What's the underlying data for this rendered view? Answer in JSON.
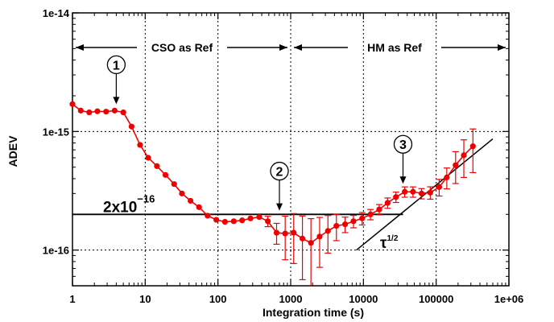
{
  "chart_data": {
    "type": "scatter",
    "title": "",
    "xlabel": "Integration time (s)",
    "ylabel": "ADEV",
    "xscale": "log",
    "yscale": "log",
    "xlim": [
      1,
      1000000
    ],
    "ylim": [
      5e-17,
      1e-14
    ],
    "x_ticks": [
      {
        "value": 1,
        "label": "1"
      },
      {
        "value": 10,
        "label": "10"
      },
      {
        "value": 100,
        "label": "100"
      },
      {
        "value": 1000,
        "label": "1000"
      },
      {
        "value": 10000,
        "label": "10000"
      },
      {
        "value": 100000,
        "label": "100000"
      },
      {
        "value": 1000000,
        "label": "1e+06"
      }
    ],
    "y_ticks": [
      {
        "value": 1e-16,
        "label": "1e-16"
      },
      {
        "value": 1e-15,
        "label": "1e-15"
      },
      {
        "value": 1e-14,
        "label": "1e-14"
      }
    ],
    "grid": "dotted",
    "colors": {
      "series": "#ee0000",
      "reference": "#000000"
    },
    "series": [
      {
        "x": [
          1,
          1.3,
          1.7,
          2.2,
          2.9,
          3.8,
          5,
          6.5,
          8.5,
          11,
          14.5,
          19,
          25,
          32,
          42,
          55,
          72,
          95,
          125,
          165,
          215,
          280,
          370,
          485,
          640,
          840,
          1100,
          1450,
          1900,
          2500,
          3250,
          4250,
          5600,
          7300,
          9600,
          12500,
          16500,
          21500,
          28000,
          37000,
          48000,
          63000,
          83000,
          110000,
          140000,
          185000,
          240000,
          320000
        ],
        "y": [
          1.7e-15,
          1.5e-15,
          1.45e-15,
          1.48e-15,
          1.47e-15,
          1.5e-15,
          1.45e-15,
          1.1e-15,
          7.7e-16,
          6e-16,
          5.1e-16,
          4.3e-16,
          3.6e-16,
          3e-16,
          2.6e-16,
          2.3e-16,
          1.95e-16,
          1.8e-16,
          1.73e-16,
          1.75e-16,
          1.78e-16,
          1.85e-16,
          1.9e-16,
          1.75e-16,
          1.4e-16,
          1.38e-16,
          1.4e-16,
          1.25e-16,
          1.15e-16,
          1.3e-16,
          1.45e-16,
          1.6e-16,
          1.65e-16,
          1.75e-16,
          1.85e-16,
          2e-16,
          2.2e-16,
          2.5e-16,
          2.8e-16,
          3.1e-16,
          3.1e-16,
          3e-16,
          3.05e-16,
          3.4e-16,
          4.1e-16,
          5.2e-16,
          6.3e-16,
          7.5e-16
        ],
        "err": [
          0,
          0,
          0,
          0,
          0,
          0,
          0,
          0,
          0,
          0,
          0,
          0,
          0,
          0,
          0,
          0,
          0,
          0,
          0,
          0,
          0,
          0,
          0,
          0.1,
          0.2,
          0.4,
          0.45,
          0.55,
          0.6,
          0.45,
          0.35,
          0.25,
          0.15,
          0.12,
          0.12,
          0.1,
          0.1,
          0.1,
          0.1,
          0.1,
          0.1,
          0.1,
          0.12,
          0.16,
          0.2,
          0.3,
          0.35,
          0.4
        ]
      }
    ],
    "annotations": {
      "left_region": "CSO as Ref",
      "right_region": "HM as Ref",
      "reference_label": "2x10",
      "reference_exp": "−16",
      "reference_value": 2e-16,
      "slope_label": "τ",
      "slope_exp": "1/2",
      "callouts": [
        {
          "label": "1",
          "x": 4,
          "y": 1.5e-15
        },
        {
          "label": "2",
          "x": 700,
          "y": 1.9e-16
        },
        {
          "label": "3",
          "x": 35000,
          "y": 3.2e-16
        }
      ]
    }
  }
}
